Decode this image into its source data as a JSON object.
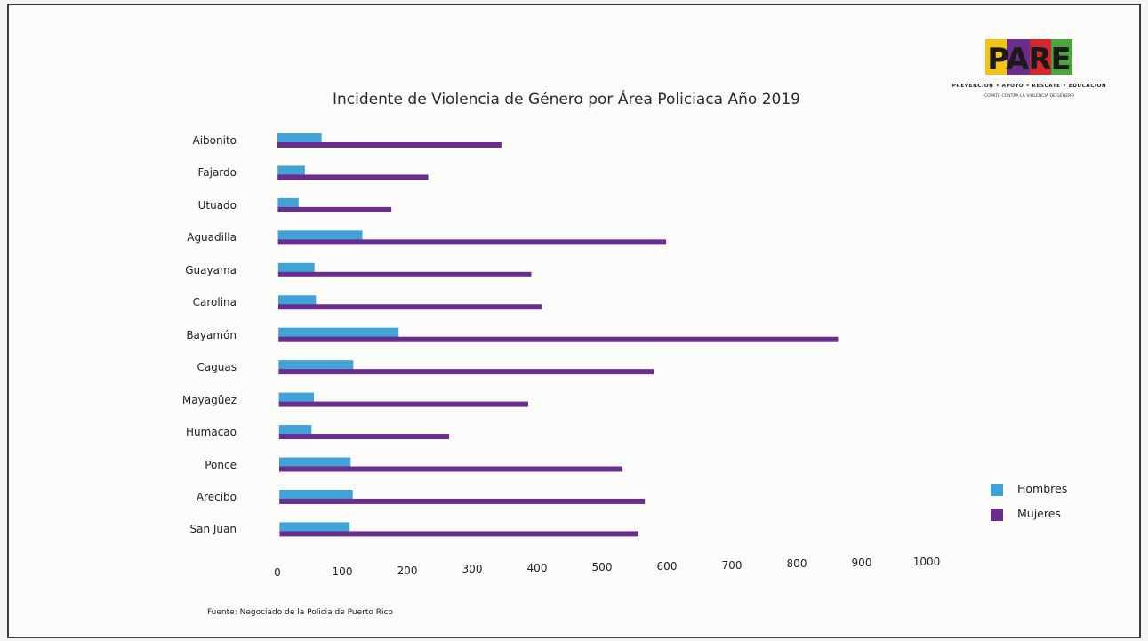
{
  "chart_data": {
    "type": "bar",
    "orientation": "horizontal",
    "title": "Incidente de Violencia de Género por Área Policiaca Año 2019",
    "categories": [
      "Aibonito",
      "Fajardo",
      "Utuado",
      "Aguadilla",
      "Guayama",
      "Carolina",
      "Bayamón",
      "Caguas",
      "Mayagüez",
      "Humacao",
      "Ponce",
      "Arecibo",
      "San Juan"
    ],
    "series": [
      {
        "name": "Hombres",
        "color": "#3fa3d8",
        "values": [
          68,
          42,
          32,
          130,
          56,
          58,
          185,
          115,
          54,
          50,
          110,
          113,
          108
        ]
      },
      {
        "name": "Mujeres",
        "color": "#6a2d8c",
        "values": [
          345,
          232,
          175,
          598,
          390,
          406,
          862,
          578,
          384,
          262,
          529,
          563,
          553
        ]
      }
    ],
    "xlim": [
      0,
      1000
    ],
    "xticks": [
      "0",
      "100",
      "200",
      "300",
      "400",
      "500",
      "600",
      "700",
      "800",
      "900",
      "1000"
    ],
    "grid": false,
    "legend_position": "right"
  },
  "logo": {
    "word": "PARE",
    "tagline": "PREVENCION • APOYO • RESCATE • EDUCACION",
    "subtitle": "COMITÉ CONTRA LA VIOLENCIA DE GÉNERO"
  },
  "source": "Fuente: Negociado de la Policia de Puerto Rico"
}
